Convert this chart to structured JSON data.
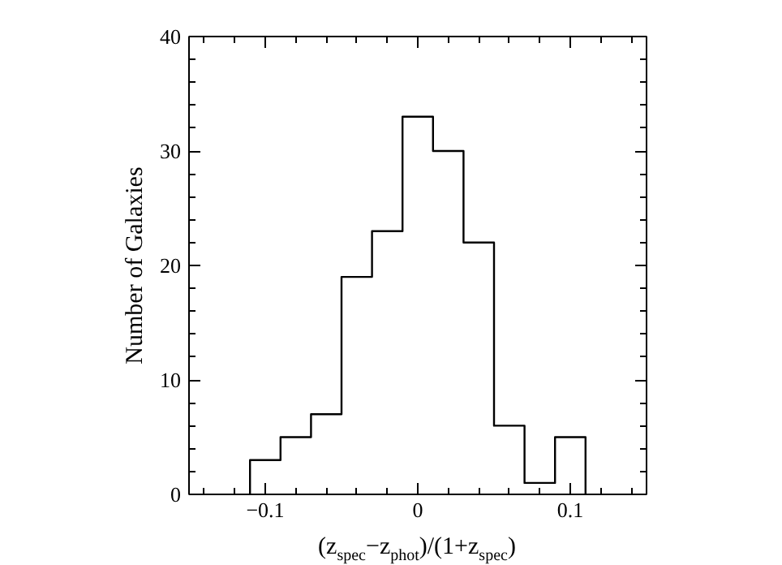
{
  "chart_data": {
    "type": "histogram",
    "xlabel": "(z$_{spec}$−z$_{phot}$)/(1+z$_{spec}$)",
    "ylabel": "Number of Galaxies",
    "bins": [
      -0.11,
      -0.09,
      -0.07,
      -0.05,
      -0.03,
      -0.01,
      0.01,
      0.03,
      0.05,
      0.07,
      0.09,
      0.11
    ],
    "values": [
      3,
      5,
      7,
      19,
      23,
      33,
      30,
      22,
      6,
      1,
      5
    ],
    "color": "#000000",
    "xlim": [
      -0.15,
      0.15
    ],
    "xticks": [
      {
        "value": -0.14,
        "label": null
      },
      {
        "value": -0.12,
        "label": null
      },
      {
        "value": -0.1,
        "label": "−0.1"
      },
      {
        "value": -0.08,
        "label": null
      },
      {
        "value": -0.06,
        "label": null
      },
      {
        "value": -0.04,
        "label": null
      },
      {
        "value": -0.02,
        "label": null
      },
      0,
      {
        "value": 0.02,
        "label": null
      },
      {
        "value": 0.04,
        "label": null
      },
      {
        "value": 0.06,
        "label": null
      },
      {
        "value": 0.08,
        "label": null
      },
      {
        "value": 0.1,
        "label": "0.1"
      },
      {
        "value": 0.12,
        "label": null
      },
      {
        "value": 0.14,
        "label": null
      }
    ],
    "ylim": [
      0,
      40
    ],
    "yticks": [
      0,
      {
        "value": 2,
        "label": null
      },
      {
        "value": 4,
        "label": null
      },
      {
        "value": 6,
        "label": null
      },
      {
        "value": 8,
        "label": null
      },
      10,
      {
        "value": 12,
        "label": null
      },
      {
        "value": 14,
        "label": null
      },
      {
        "value": 16,
        "label": null
      },
      {
        "value": 18,
        "label": null
      },
      20,
      {
        "value": 22,
        "label": null
      },
      {
        "value": 24,
        "label": null
      },
      {
        "value": 26,
        "label": null
      },
      {
        "value": 28,
        "label": null
      },
      30,
      {
        "value": 32,
        "label": null
      },
      {
        "value": 34,
        "label": null
      },
      {
        "value": 36,
        "label": null
      },
      {
        "value": 38,
        "label": null
      },
      40
    ],
    "grid": false
  }
}
